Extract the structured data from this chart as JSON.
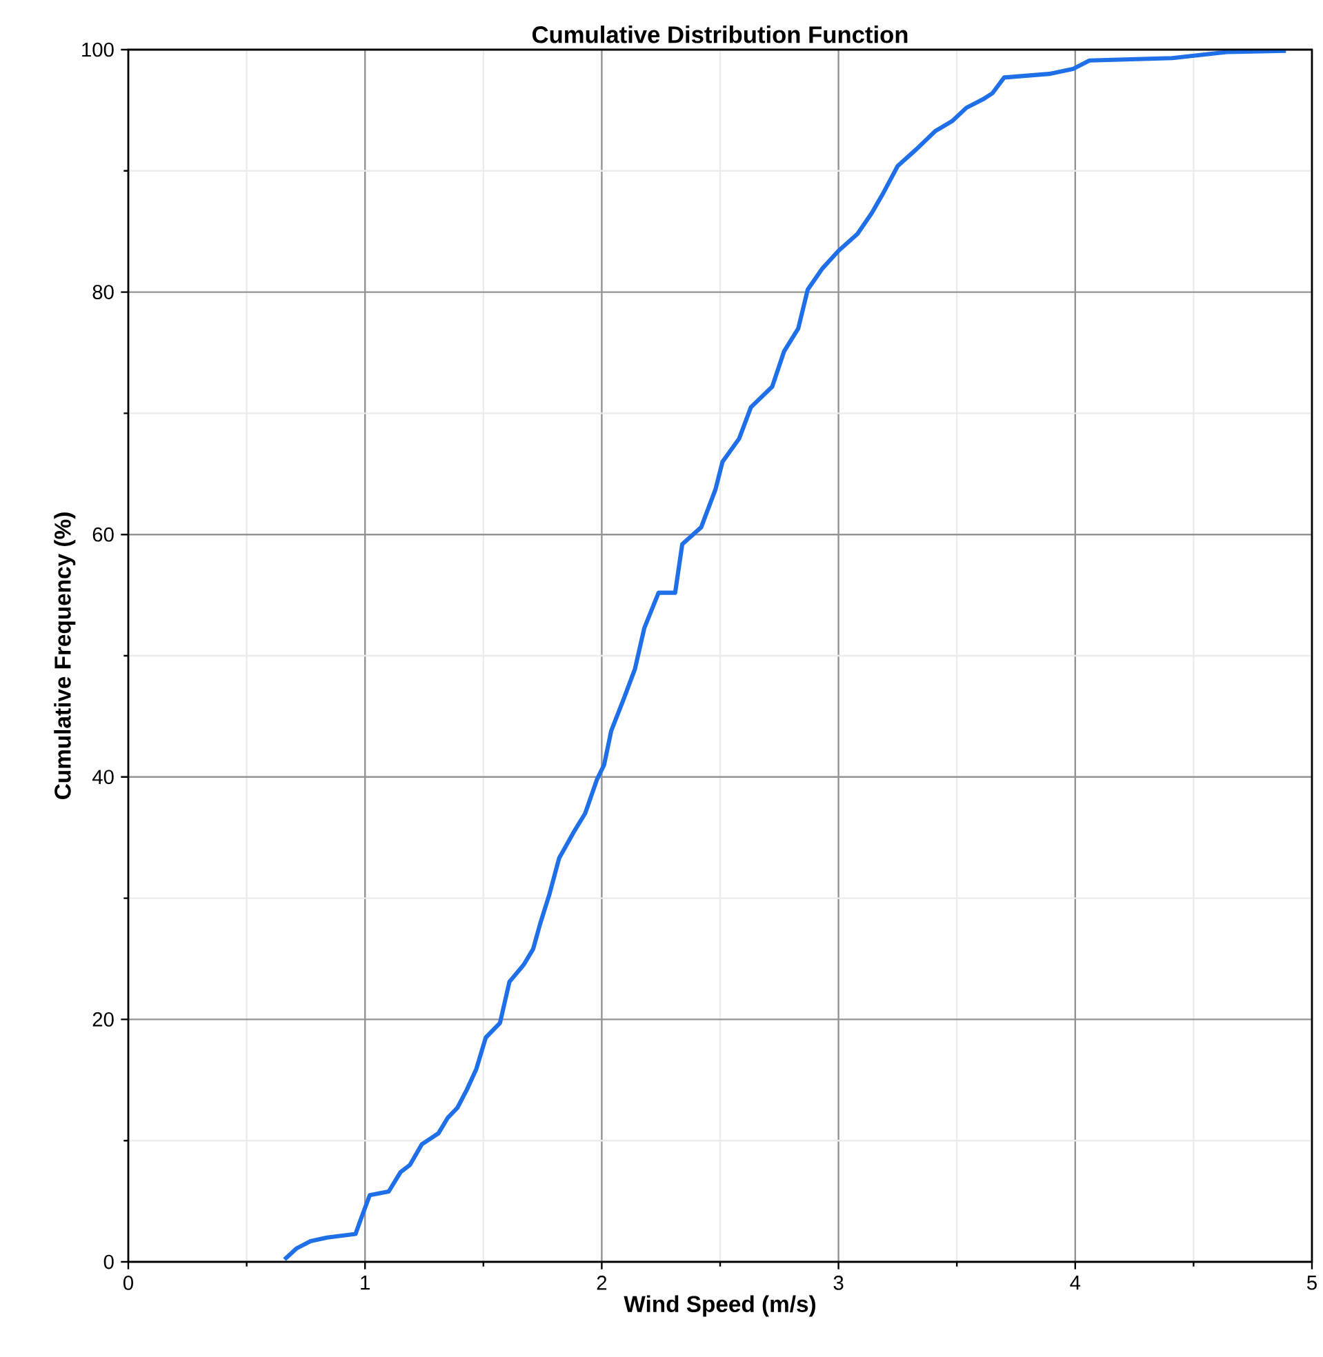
{
  "chart_data": {
    "type": "line",
    "title": "Cumulative Distribution Function",
    "xlabel": "Wind Speed (m/s)",
    "ylabel": "Cumulative Frequency (%)",
    "xlim": [
      0,
      5
    ],
    "ylim": [
      0,
      100
    ],
    "xticks": [
      0,
      1,
      2,
      3,
      4,
      5
    ],
    "yticks": [
      0,
      20,
      40,
      60,
      80,
      100
    ],
    "grid": true,
    "series": [
      {
        "color": "#1f6fe8",
        "x": [
          0.66,
          0.71,
          0.77,
          0.84,
          0.96,
          0.98,
          1.02,
          1.1,
          1.15,
          1.19,
          1.24,
          1.31,
          1.35,
          1.39,
          1.43,
          1.47,
          1.51,
          1.57,
          1.61,
          1.67,
          1.71,
          1.74,
          1.78,
          1.82,
          1.88,
          1.93,
          1.98,
          2.01,
          2.04,
          2.09,
          2.14,
          2.18,
          2.24,
          2.31,
          2.34,
          2.42,
          2.48,
          2.51,
          2.58,
          2.63,
          2.72,
          2.77,
          2.83,
          2.87,
          2.93,
          3.0,
          3.08,
          3.14,
          3.19,
          3.25,
          3.33,
          3.41,
          3.48,
          3.54,
          3.61,
          3.65,
          3.7,
          3.89,
          3.99,
          4.06,
          4.41,
          4.64,
          4.89
        ],
        "values": [
          0.2,
          1.1,
          1.7,
          2.0,
          2.3,
          3.4,
          5.5,
          5.8,
          7.4,
          8.0,
          9.7,
          10.6,
          11.9,
          12.7,
          14.2,
          15.9,
          18.5,
          19.7,
          23.1,
          24.5,
          25.8,
          27.9,
          30.4,
          33.3,
          35.4,
          37,
          39.8,
          41,
          43.8,
          46.3,
          48.9,
          52.3,
          55.2,
          55.2,
          59.2,
          60.6,
          63.7,
          66,
          67.9,
          70.5,
          72.2,
          75.1,
          77,
          80.2,
          81.9,
          83.4,
          84.8,
          86.5,
          88.2,
          90.4,
          91.8,
          93.3,
          94.1,
          95.2,
          95.9,
          96.4,
          97.7,
          98,
          98.4,
          99.1,
          99.3,
          99.8,
          99.9
        ]
      }
    ]
  }
}
